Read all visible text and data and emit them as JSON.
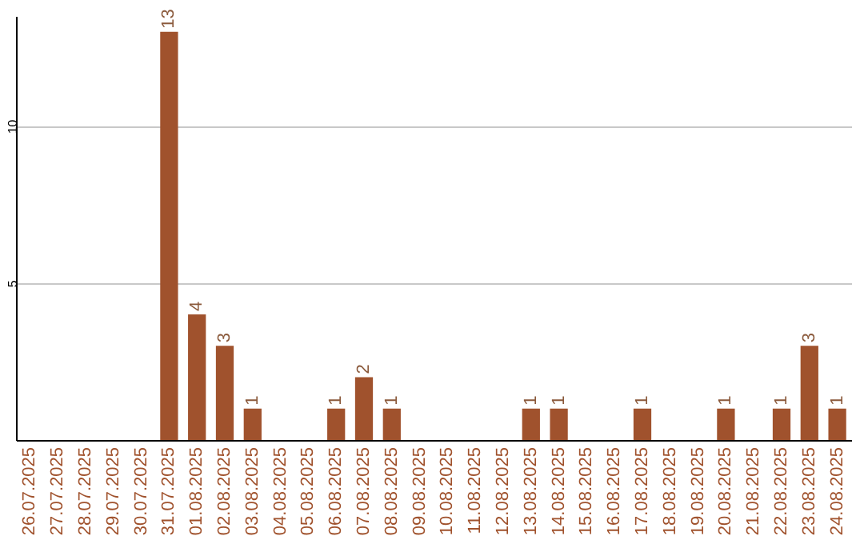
{
  "chart_data": {
    "type": "bar",
    "categories": [
      "26.07.2025",
      "27.07.2025",
      "28.07.2025",
      "29.07.2025",
      "30.07.2025",
      "31.07.2025",
      "01.08.2025",
      "02.08.2025",
      "03.08.2025",
      "04.08.2025",
      "05.08.2025",
      "06.08.2025",
      "07.08.2025",
      "08.08.2025",
      "09.08.2025",
      "10.08.2025",
      "11.08.2025",
      "12.08.2025",
      "13.08.2025",
      "14.08.2025",
      "15.08.2025",
      "16.08.2025",
      "17.08.2025",
      "18.08.2025",
      "19.08.2025",
      "20.08.2025",
      "21.08.2025",
      "22.08.2025",
      "23.08.2025",
      "24.08.2025"
    ],
    "values": [
      0,
      0,
      0,
      0,
      0,
      13,
      4,
      3,
      1,
      0,
      0,
      1,
      2,
      1,
      0,
      0,
      0,
      0,
      1,
      1,
      0,
      0,
      1,
      0,
      0,
      1,
      0,
      1,
      3,
      1
    ],
    "value_labels": [
      null,
      null,
      null,
      null,
      null,
      "13",
      "4",
      "3",
      "1",
      null,
      null,
      "1",
      "2",
      "1",
      null,
      null,
      null,
      null,
      "1",
      "1",
      null,
      null,
      "1",
      null,
      null,
      "1",
      null,
      "1",
      "3",
      "1"
    ],
    "color": "#a0522d",
    "ylim": [
      0,
      13.5
    ],
    "yticks": [
      5,
      10
    ],
    "grid": "y"
  }
}
